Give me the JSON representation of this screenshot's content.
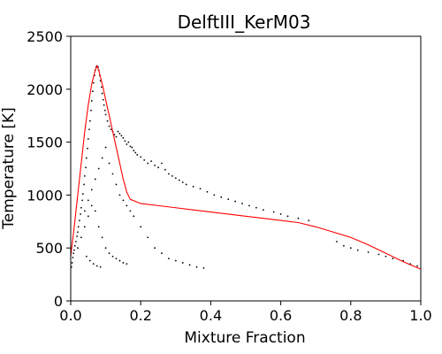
{
  "chart_data": {
    "type": "scatter",
    "title": "DelftIII_KerM03",
    "xlabel": "Mixture Fraction",
    "ylabel": "Temperature [K]",
    "xlim": [
      0.0,
      1.0
    ],
    "ylim": [
      0,
      2500
    ],
    "x_ticks": [
      "0.0",
      "0.2",
      "0.4",
      "0.6",
      "0.8",
      "1.0"
    ],
    "y_ticks": [
      "0",
      "500",
      "1000",
      "1500",
      "2000",
      "2500"
    ],
    "grid": false,
    "legend": "none",
    "colors": {
      "scatter": "#000000",
      "line": "#ff0000"
    },
    "series": [
      {
        "type": "scatter",
        "points": [
          [
            0.002,
            320
          ],
          [
            0.004,
            360
          ],
          [
            0.006,
            410
          ],
          [
            0.008,
            450
          ],
          [
            0.01,
            480
          ],
          [
            0.012,
            520
          ],
          [
            0.015,
            560
          ],
          [
            0.018,
            610
          ],
          [
            0.02,
            650
          ],
          [
            0.022,
            700
          ],
          [
            0.025,
            760
          ],
          [
            0.028,
            820
          ],
          [
            0.03,
            880
          ],
          [
            0.033,
            950
          ],
          [
            0.035,
            1010
          ],
          [
            0.038,
            1100
          ],
          [
            0.04,
            1180
          ],
          [
            0.043,
            1260
          ],
          [
            0.045,
            1350
          ],
          [
            0.048,
            1440
          ],
          [
            0.05,
            1530
          ],
          [
            0.053,
            1620
          ],
          [
            0.055,
            1700
          ],
          [
            0.058,
            1800
          ],
          [
            0.06,
            1890
          ],
          [
            0.063,
            1980
          ],
          [
            0.065,
            2060
          ],
          [
            0.068,
            2130
          ],
          [
            0.07,
            2180
          ],
          [
            0.073,
            2210
          ],
          [
            0.075,
            2220
          ],
          [
            0.078,
            2210
          ],
          [
            0.08,
            2180
          ],
          [
            0.083,
            2130
          ],
          [
            0.085,
            2080
          ],
          [
            0.088,
            2020
          ],
          [
            0.09,
            1960
          ],
          [
            0.093,
            1900
          ],
          [
            0.095,
            1850
          ],
          [
            0.098,
            1800
          ],
          [
            0.1,
            1760
          ],
          [
            0.105,
            1700
          ],
          [
            0.11,
            1650
          ],
          [
            0.115,
            1620
          ],
          [
            0.12,
            1600
          ],
          [
            0.125,
            1570
          ],
          [
            0.13,
            1550
          ],
          [
            0.135,
            1600
          ],
          [
            0.14,
            1580
          ],
          [
            0.145,
            1560
          ],
          [
            0.15,
            1540
          ],
          [
            0.155,
            1510
          ],
          [
            0.16,
            1480
          ],
          [
            0.165,
            1500
          ],
          [
            0.17,
            1460
          ],
          [
            0.175,
            1450
          ],
          [
            0.18,
            1420
          ],
          [
            0.185,
            1400
          ],
          [
            0.19,
            1380
          ],
          [
            0.2,
            1360
          ],
          [
            0.21,
            1330
          ],
          [
            0.22,
            1300
          ],
          [
            0.23,
            1320
          ],
          [
            0.24,
            1280
          ],
          [
            0.25,
            1260
          ],
          [
            0.26,
            1300
          ],
          [
            0.27,
            1240
          ],
          [
            0.28,
            1200
          ],
          [
            0.29,
            1180
          ],
          [
            0.3,
            1160
          ],
          [
            0.31,
            1140
          ],
          [
            0.32,
            1120
          ],
          [
            0.33,
            1100
          ],
          [
            0.35,
            1080
          ],
          [
            0.37,
            1060
          ],
          [
            0.39,
            1030
          ],
          [
            0.41,
            1000
          ],
          [
            0.43,
            980
          ],
          [
            0.45,
            960
          ],
          [
            0.47,
            940
          ],
          [
            0.49,
            920
          ],
          [
            0.51,
            900
          ],
          [
            0.53,
            880
          ],
          [
            0.55,
            860
          ],
          [
            0.58,
            840
          ],
          [
            0.6,
            820
          ],
          [
            0.62,
            800
          ],
          [
            0.65,
            780
          ],
          [
            0.68,
            760
          ],
          [
            0.76,
            560
          ],
          [
            0.78,
            520
          ],
          [
            0.8,
            500
          ],
          [
            0.82,
            480
          ],
          [
            0.85,
            460
          ],
          [
            0.88,
            440
          ],
          [
            0.9,
            420
          ],
          [
            0.92,
            400
          ],
          [
            0.95,
            380
          ],
          [
            0.97,
            350
          ],
          [
            0.99,
            330
          ],
          [
            0.02,
            500
          ],
          [
            0.03,
            600
          ],
          [
            0.04,
            700
          ],
          [
            0.05,
            800
          ],
          [
            0.06,
            900
          ],
          [
            0.04,
            850
          ],
          [
            0.05,
            950
          ],
          [
            0.06,
            1050
          ],
          [
            0.07,
            1150
          ],
          [
            0.08,
            1250
          ],
          [
            0.09,
            1350
          ],
          [
            0.1,
            1450
          ],
          [
            0.11,
            1300
          ],
          [
            0.12,
            1200
          ],
          [
            0.13,
            1100
          ],
          [
            0.14,
            1000
          ],
          [
            0.15,
            950
          ],
          [
            0.16,
            900
          ],
          [
            0.17,
            850
          ],
          [
            0.18,
            800
          ],
          [
            0.2,
            700
          ],
          [
            0.22,
            600
          ],
          [
            0.24,
            500
          ],
          [
            0.26,
            450
          ],
          [
            0.28,
            400
          ],
          [
            0.3,
            380
          ],
          [
            0.32,
            360
          ],
          [
            0.34,
            340
          ],
          [
            0.36,
            320
          ],
          [
            0.38,
            310
          ],
          [
            0.07,
            850
          ],
          [
            0.08,
            700
          ],
          [
            0.09,
            600
          ],
          [
            0.1,
            500
          ],
          [
            0.11,
            450
          ],
          [
            0.12,
            420
          ],
          [
            0.13,
            400
          ],
          [
            0.14,
            380
          ],
          [
            0.15,
            360
          ],
          [
            0.16,
            350
          ],
          [
            0.045,
            420
          ],
          [
            0.055,
            380
          ],
          [
            0.065,
            350
          ],
          [
            0.075,
            330
          ],
          [
            0.085,
            320
          ]
        ]
      },
      {
        "type": "line",
        "points": [
          [
            0.0,
            420
          ],
          [
            0.01,
            700
          ],
          [
            0.02,
            1000
          ],
          [
            0.03,
            1300
          ],
          [
            0.04,
            1600
          ],
          [
            0.05,
            1850
          ],
          [
            0.06,
            2050
          ],
          [
            0.07,
            2180
          ],
          [
            0.075,
            2220
          ],
          [
            0.08,
            2180
          ],
          [
            0.09,
            2050
          ],
          [
            0.1,
            1900
          ],
          [
            0.11,
            1750
          ],
          [
            0.12,
            1600
          ],
          [
            0.13,
            1450
          ],
          [
            0.14,
            1300
          ],
          [
            0.15,
            1150
          ],
          [
            0.16,
            1030
          ],
          [
            0.17,
            960
          ],
          [
            0.2,
            920
          ],
          [
            0.25,
            900
          ],
          [
            0.3,
            880
          ],
          [
            0.35,
            860
          ],
          [
            0.4,
            840
          ],
          [
            0.45,
            820
          ],
          [
            0.5,
            800
          ],
          [
            0.55,
            780
          ],
          [
            0.6,
            760
          ],
          [
            0.65,
            740
          ],
          [
            0.7,
            700
          ],
          [
            0.75,
            650
          ],
          [
            0.8,
            600
          ],
          [
            0.85,
            530
          ],
          [
            0.9,
            450
          ],
          [
            0.95,
            370
          ],
          [
            1.0,
            300
          ]
        ]
      }
    ]
  }
}
